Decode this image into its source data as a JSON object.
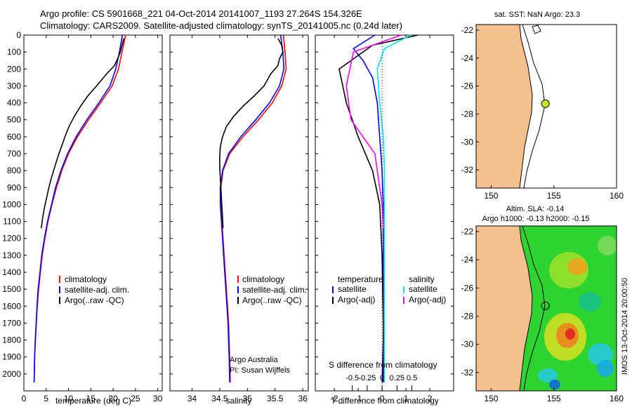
{
  "header": {
    "line1": "Argo profile: CS 5901668_221 04-Oct-2014 20141007_1193 27.264S 154.326E",
    "line2": "Climatology: CARS2009. Satellite-adjusted climatology: synTS_20141005.nc (0.24d later)"
  },
  "colors": {
    "climatology": "#ff0000",
    "satellite": "#0000ff",
    "argo": "#000000",
    "argo_salinity": "#ff00ff",
    "satellite_salinity": "#00e5ff",
    "land": "#f5c08f",
    "argo_marker": "#c8e61e"
  },
  "chart_data": [
    {
      "id": "temperature",
      "type": "line",
      "xlabel": "temperature (deg C)",
      "ylabel": "",
      "xlim": [
        0,
        31
      ],
      "ylim": [
        0,
        2100
      ],
      "xticks": [
        "0",
        "5",
        "10",
        "15",
        "20",
        "25",
        "30"
      ],
      "yticks": [
        "0",
        "100",
        "200",
        "300",
        "400",
        "500",
        "600",
        "700",
        "800",
        "900",
        "1000",
        "1100",
        "1200",
        "1300",
        "1400",
        "1500",
        "1600",
        "1700",
        "1800",
        "1900",
        "2000"
      ],
      "series": [
        {
          "name": "climatology",
          "color": "#ff0000",
          "x": [
            22.8,
            22.0,
            21.2,
            19.8,
            17.2,
            14.5,
            12.0,
            10.0,
            8.5,
            7.3,
            6.3,
            5.4,
            4.7,
            4.1,
            3.7,
            3.3,
            3.0,
            2.8,
            2.6,
            2.4,
            2.3
          ],
          "y": [
            0,
            100,
            200,
            300,
            400,
            500,
            600,
            700,
            800,
            900,
            1000,
            1100,
            1200,
            1300,
            1400,
            1500,
            1600,
            1700,
            1800,
            1900,
            2050
          ]
        },
        {
          "name": "satellite-adj. clim.",
          "color": "#0000ff",
          "x": [
            22.1,
            21.4,
            20.6,
            19.3,
            16.8,
            14.1,
            11.7,
            9.8,
            8.3,
            7.1,
            6.2,
            5.3,
            4.6,
            4.0,
            3.6,
            3.2,
            2.95,
            2.75,
            2.55,
            2.4,
            2.3
          ],
          "y": [
            0,
            100,
            200,
            300,
            400,
            500,
            600,
            700,
            800,
            900,
            1000,
            1100,
            1200,
            1300,
            1400,
            1500,
            1600,
            1700,
            1800,
            1900,
            2050
          ]
        },
        {
          "name": "Argo(..raw -QC)",
          "color": "#000000",
          "x": [
            22.4,
            22.0,
            21.6,
            21.0,
            20.3,
            18.5,
            16.3,
            14.3,
            12.7,
            11.3,
            10.1,
            9.2,
            8.4,
            7.6,
            6.9,
            6.2,
            5.6,
            5.1,
            4.6,
            4.2,
            3.9
          ],
          "y": [
            20,
            60,
            100,
            140,
            180,
            230,
            300,
            360,
            420,
            480,
            540,
            600,
            660,
            720,
            780,
            840,
            900,
            960,
            1020,
            1080,
            1140
          ]
        }
      ],
      "legend": [
        "climatology",
        "satellite-adj. clim.",
        "Argo(..raw -QC)"
      ]
    },
    {
      "id": "salinity",
      "type": "line",
      "xlabel": "salinity",
      "xlim": [
        33.6,
        36.1
      ],
      "ylim": [
        0,
        2100
      ],
      "xticks": [
        "34",
        "34.5",
        "35",
        "35.5",
        "36"
      ],
      "series": [
        {
          "name": "climatology",
          "color": "#ff0000",
          "x": [
            35.65,
            35.68,
            35.7,
            35.62,
            35.45,
            35.2,
            34.92,
            34.68,
            34.56,
            34.52,
            34.52,
            34.54,
            34.56,
            34.58,
            34.6,
            34.62,
            34.64,
            34.66,
            34.67,
            34.68,
            34.69
          ],
          "y": [
            0,
            100,
            200,
            300,
            400,
            500,
            600,
            700,
            800,
            900,
            1000,
            1100,
            1200,
            1300,
            1400,
            1500,
            1600,
            1700,
            1800,
            1900,
            2050
          ]
        },
        {
          "name": "satellite-adj. clim.",
          "color": "#0000ff",
          "x": [
            35.6,
            35.64,
            35.66,
            35.58,
            35.4,
            35.15,
            34.88,
            34.66,
            34.55,
            34.51,
            34.51,
            34.53,
            34.55,
            34.57,
            34.59,
            34.61,
            34.63,
            34.65,
            34.66,
            34.67,
            34.68
          ],
          "y": [
            0,
            100,
            200,
            300,
            400,
            500,
            600,
            700,
            800,
            900,
            1000,
            1100,
            1200,
            1300,
            1400,
            1500,
            1600,
            1700,
            1800,
            1900,
            2050
          ]
        },
        {
          "name": "Argo(..raw -QC)",
          "color": "#000000",
          "x": [
            35.55,
            35.62,
            35.64,
            35.58,
            35.55,
            35.42,
            35.3,
            35.12,
            34.92,
            34.75,
            34.62,
            34.55,
            34.51,
            34.5,
            34.5,
            34.51,
            34.52,
            34.53,
            34.54,
            34.55,
            34.56
          ],
          "y": [
            20,
            60,
            100,
            140,
            180,
            230,
            300,
            360,
            420,
            480,
            540,
            600,
            660,
            720,
            780,
            840,
            900,
            960,
            1020,
            1080,
            1140
          ]
        }
      ],
      "legend": [
        "climatology",
        "satellite-adj. clim.",
        "Argo(..raw -QC)"
      ],
      "annotation": [
        "Argo Australia",
        "PI: Susan Wijffels"
      ]
    },
    {
      "id": "difference",
      "type": "line",
      "xlabel": "T difference from climatology",
      "xlabel_top": "S difference from climatology",
      "xlim": [
        -2.8,
        3.0
      ],
      "ylim": [
        0,
        2100
      ],
      "xticks": [
        "-2",
        "-1",
        "0",
        "1",
        "2"
      ],
      "xticks_s": [
        "-0.5",
        "-0.25",
        "0",
        "0.25",
        "0.5"
      ],
      "series": [
        {
          "name": "temperature satellite",
          "color": "#0000ff",
          "x": [
            -0.3,
            -1.2,
            -0.8,
            -0.4,
            -0.2,
            -0.1,
            0.0,
            0.05,
            0.05,
            0.05,
            0.0
          ],
          "y": [
            0,
            80,
            150,
            250,
            400,
            600,
            800,
            1000,
            1400,
            1800,
            2050
          ]
        },
        {
          "name": "temperature Argo(-adj)",
          "color": "#000000",
          "x": [
            1.5,
            -0.4,
            -1.8,
            -1.5,
            -1.0,
            -0.4,
            -0.1,
            0.0,
            0.05,
            0.05
          ],
          "y": [
            0,
            60,
            200,
            400,
            600,
            800,
            1000,
            1300,
            1700,
            2050
          ]
        },
        {
          "name": "salinity satellite",
          "color": "#00e5ff",
          "x": [
            1.2,
            0.1,
            -0.2,
            -0.1,
            0.05,
            0.1,
            0.1,
            0.1,
            0.1
          ],
          "y": [
            0,
            80,
            200,
            400,
            600,
            800,
            1000,
            1500,
            2050
          ]
        },
        {
          "name": "salinity Argo(-adj)",
          "color": "#ff00ff",
          "x": [
            0.8,
            -1.2,
            -1.5,
            -1.3,
            -0.3,
            0.0,
            0.05
          ],
          "y": [
            0,
            100,
            300,
            500,
            700,
            1000,
            1140
          ]
        }
      ],
      "legend_titles": [
        "temperature",
        "salinity"
      ],
      "legend_left": [
        "satellite",
        "Argo(-adj)"
      ],
      "legend_right": [
        "satellite",
        "Argo(-adj)"
      ]
    }
  ],
  "maps": {
    "sst": {
      "title": "sat. SST: NaN Argo: 23.3",
      "xticks": [
        "150",
        "155",
        "160"
      ],
      "yticks": [
        "-22",
        "-24",
        "-26",
        "-28",
        "-30",
        "-32"
      ]
    },
    "sla": {
      "title1": "Altim. SLA: -0.14",
      "title2": "Argo h1000: -0.13 h2000: -0.15",
      "side_label": "IMOS 13-Oct-2014 20:00:50",
      "xticks": [
        "150",
        "155",
        "160"
      ],
      "yticks": [
        "-22",
        "-24",
        "-26",
        "-28",
        "-30",
        "-32"
      ]
    }
  }
}
